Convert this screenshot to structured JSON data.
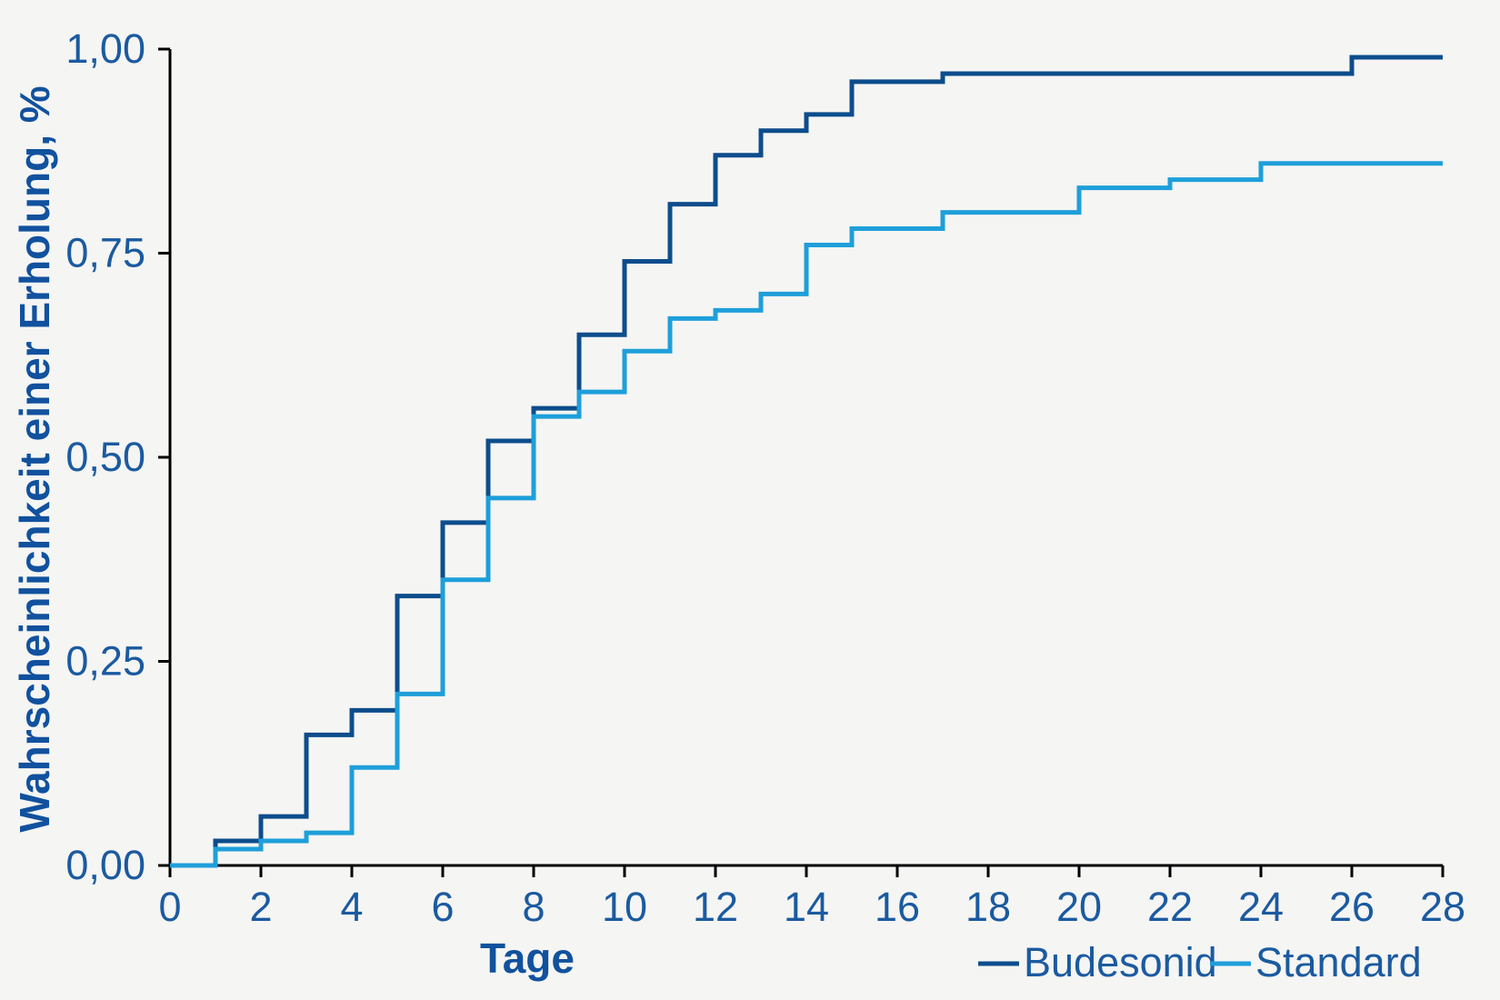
{
  "colors": {
    "background": "#f5f5f3",
    "axis": "#000000",
    "tick_label": "#1b5aa0",
    "axis_title": "#11519e",
    "budesonid_line": "#0d4d8c",
    "standard_line": "#1e9fda"
  },
  "chart_data": {
    "type": "line",
    "step_interpolation": "post",
    "title": "",
    "xlabel": "Tage",
    "ylabel": "Wahrscheinlichkeit einer Erholung, %",
    "xlim": [
      0,
      28
    ],
    "ylim": [
      0,
      1
    ],
    "grid": false,
    "legend_position": "bottom-right",
    "x_ticks": [
      {
        "v": 0,
        "label": "0"
      },
      {
        "v": 2,
        "label": "2"
      },
      {
        "v": 4,
        "label": "4"
      },
      {
        "v": 6,
        "label": "6"
      },
      {
        "v": 8,
        "label": "8"
      },
      {
        "v": 10,
        "label": "10"
      },
      {
        "v": 12,
        "label": "12"
      },
      {
        "v": 14,
        "label": "14"
      },
      {
        "v": 16,
        "label": "16"
      },
      {
        "v": 18,
        "label": "18"
      },
      {
        "v": 20,
        "label": "20"
      },
      {
        "v": 22,
        "label": "22"
      },
      {
        "v": 24,
        "label": "24"
      },
      {
        "v": 26,
        "label": "26"
      },
      {
        "v": 28,
        "label": "28"
      }
    ],
    "y_ticks": [
      {
        "v": 0.0,
        "label": "0,00"
      },
      {
        "v": 0.25,
        "label": "0,25"
      },
      {
        "v": 0.5,
        "label": "0,50"
      },
      {
        "v": 0.75,
        "label": "0,75"
      },
      {
        "v": 1.0,
        "label": "1,00"
      }
    ],
    "series": [
      {
        "name": "Budesonid",
        "color": "#0d4d8c",
        "start": [
          0,
          0
        ],
        "end_x": 28,
        "events": [
          [
            1,
            0.03
          ],
          [
            2,
            0.06
          ],
          [
            3,
            0.16
          ],
          [
            4,
            0.19
          ],
          [
            5,
            0.33
          ],
          [
            6,
            0.42
          ],
          [
            7,
            0.52
          ],
          [
            8,
            0.56
          ],
          [
            9,
            0.65
          ],
          [
            10,
            0.74
          ],
          [
            11,
            0.81
          ],
          [
            12,
            0.87
          ],
          [
            13,
            0.9
          ],
          [
            14,
            0.92
          ],
          [
            15,
            0.96
          ],
          [
            17,
            0.97
          ],
          [
            26,
            0.99
          ]
        ]
      },
      {
        "name": "Standard",
        "color": "#1e9fda",
        "start": [
          0,
          0
        ],
        "end_x": 28,
        "events": [
          [
            1,
            0.02
          ],
          [
            2,
            0.03
          ],
          [
            3,
            0.04
          ],
          [
            4,
            0.12
          ],
          [
            5,
            0.21
          ],
          [
            6,
            0.35
          ],
          [
            7,
            0.45
          ],
          [
            8,
            0.55
          ],
          [
            9,
            0.58
          ],
          [
            10,
            0.63
          ],
          [
            11,
            0.67
          ],
          [
            12,
            0.68
          ],
          [
            13,
            0.7
          ],
          [
            14,
            0.76
          ],
          [
            15,
            0.78
          ],
          [
            17,
            0.8
          ],
          [
            20,
            0.83
          ],
          [
            22,
            0.84
          ],
          [
            24,
            0.86
          ]
        ]
      }
    ]
  }
}
